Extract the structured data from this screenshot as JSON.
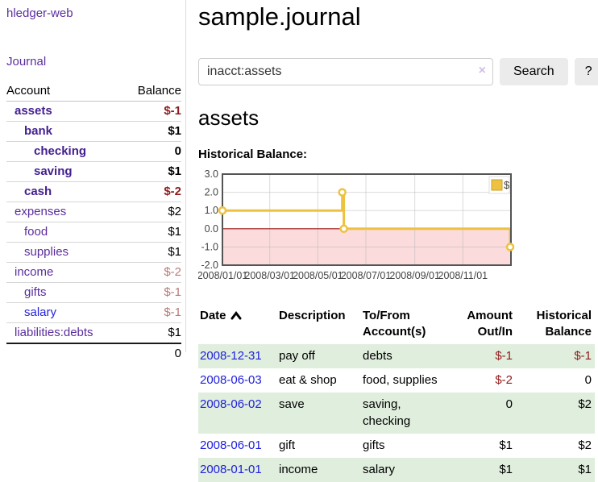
{
  "colors": {
    "link_purple": "#5b2d9e",
    "link_purple_bold": "#44208f",
    "link_blue": "#2323dd",
    "negative_strong": "#8f1c1c",
    "negative_muted": "#b97979",
    "row_stripe_green": "#dfeedd",
    "chart_line_gold": "#edc240",
    "chart_negative_fill": "#fbdbdb",
    "chart_zero_line": "#9a1616",
    "button_bg": "#ebebeb"
  },
  "sidebar": {
    "app_title": "hledger-web",
    "nav_journal": "Journal",
    "table": {
      "col_account": "Account",
      "col_balance": "Balance",
      "accounts": [
        {
          "name": "assets",
          "indent": 1,
          "bold": true,
          "link": "purple",
          "balance": "$-1",
          "bal_style": "neg b"
        },
        {
          "name": "bank",
          "indent": 2,
          "bold": true,
          "link": "purple",
          "balance": "$1",
          "bal_style": "b"
        },
        {
          "name": "checking",
          "indent": 3,
          "bold": true,
          "link": "purple",
          "balance": "0",
          "bal_style": "b"
        },
        {
          "name": "saving",
          "indent": 3,
          "bold": true,
          "link": "purple",
          "balance": "$1",
          "bal_style": "b"
        },
        {
          "name": "cash",
          "indent": 2,
          "bold": true,
          "link": "purple",
          "balance": "$-2",
          "bal_style": "neg b"
        },
        {
          "name": "expenses",
          "indent": 1,
          "bold": false,
          "link": "purple",
          "balance": "$2",
          "bal_style": ""
        },
        {
          "name": "food",
          "indent": 2,
          "bold": false,
          "link": "purple",
          "balance": "$1",
          "bal_style": ""
        },
        {
          "name": "supplies",
          "indent": 2,
          "bold": false,
          "link": "purple",
          "balance": "$1",
          "bal_style": ""
        },
        {
          "name": "income",
          "indent": 1,
          "bold": false,
          "link": "purple",
          "balance": "$-2",
          "bal_style": "negmuted"
        },
        {
          "name": "gifts",
          "indent": 2,
          "bold": false,
          "link": "purple",
          "balance": "$-1",
          "bal_style": "negmuted"
        },
        {
          "name": "salary",
          "indent": 2,
          "bold": false,
          "link": "blue",
          "balance": "$-1",
          "bal_style": "negmuted"
        },
        {
          "name": "liabilities:debts",
          "indent": 1,
          "bold": false,
          "link": "purple",
          "balance": "$1",
          "bal_style": ""
        }
      ],
      "total": "0"
    }
  },
  "header": {
    "title": "sample.journal"
  },
  "search": {
    "value": "inacct:assets",
    "clear_icon": "×",
    "button_label": "Search",
    "help_label": "?"
  },
  "account_page": {
    "heading": "assets",
    "chart_label": "Historical Balance:"
  },
  "chart_data": {
    "type": "line",
    "title": "Historical Balance:",
    "style": "step",
    "series": [
      {
        "name": "$",
        "color": "#edc240",
        "points": [
          {
            "day": 0,
            "date": "2008-01-01",
            "value": 1
          },
          {
            "day": 152,
            "date": "2008-06-01",
            "value": 2
          },
          {
            "day": 154,
            "date": "2008-06-03",
            "value": 0
          },
          {
            "day": 365,
            "date": "2008-12-31",
            "value": -1
          }
        ]
      }
    ],
    "xlim": [
      0,
      366
    ],
    "ylim": [
      -2,
      3
    ],
    "yticks": [
      {
        "value": 3,
        "label": "3.0"
      },
      {
        "value": 2,
        "label": "2.0"
      },
      {
        "value": 1,
        "label": "1.0"
      },
      {
        "value": 0,
        "label": "0.0"
      },
      {
        "value": -1,
        "label": "-1.0"
      },
      {
        "value": -2,
        "label": "-2.0"
      }
    ],
    "xticks": [
      {
        "day": 0,
        "label": "2008/01/01"
      },
      {
        "day": 60,
        "label": "2008/03/01"
      },
      {
        "day": 121,
        "label": "2008/05/01"
      },
      {
        "day": 182,
        "label": "2008/07/01"
      },
      {
        "day": 244,
        "label": "2008/09/01"
      },
      {
        "day": 305,
        "label": "2008/11/01"
      }
    ],
    "grid": true,
    "negative_region_fill": "#fbdbdb",
    "zero_line_color": "#9a1616",
    "legend": {
      "label": "$",
      "position": "top-right"
    }
  },
  "register": {
    "columns": [
      "Date",
      "Description",
      "To/From Account(s)",
      "Amount Out/In",
      "Historical Balance"
    ],
    "sort": {
      "column": "Date",
      "direction": "ascending"
    },
    "rows": [
      {
        "date": "2008-12-31",
        "description": "pay off",
        "accounts": "debts",
        "amount": "$-1",
        "amount_neg": true,
        "balance": "$-1",
        "balance_neg": true
      },
      {
        "date": "2008-06-03",
        "description": "eat & shop",
        "accounts": "food, supplies",
        "amount": "$-2",
        "amount_neg": true,
        "balance": "0",
        "balance_neg": false
      },
      {
        "date": "2008-06-02",
        "description": "save",
        "accounts": "saving, checking",
        "amount": "0",
        "amount_neg": false,
        "balance": "$2",
        "balance_neg": false
      },
      {
        "date": "2008-06-01",
        "description": "gift",
        "accounts": "gifts",
        "amount": "$1",
        "amount_neg": false,
        "balance": "$2",
        "balance_neg": false
      },
      {
        "date": "2008-01-01",
        "description": "income",
        "accounts": "salary",
        "amount": "$1",
        "amount_neg": false,
        "balance": "$1",
        "balance_neg": false
      }
    ]
  }
}
